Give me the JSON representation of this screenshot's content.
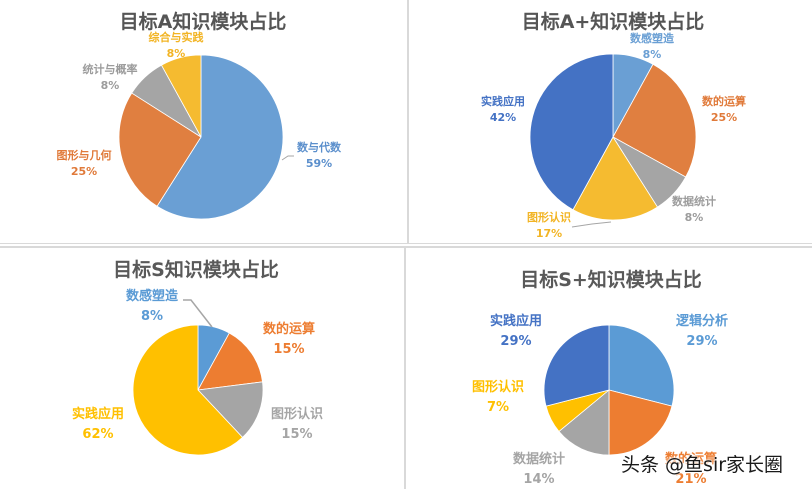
{
  "chart_data": [
    {
      "type": "pie",
      "title": "目标A知识模块占比",
      "categories": [
        "数与代数",
        "图形与几何",
        "统计与概率",
        "综合与实践"
      ],
      "values": [
        59,
        25,
        8,
        8
      ],
      "unit": "%",
      "colors": [
        "#6a9fd4",
        "#e07f40",
        "#a5a5a5",
        "#f5bb30"
      ],
      "label_colors": [
        "#5b8fcc",
        "#e07a3a",
        "#9c9c9c",
        "#f2b424"
      ],
      "legend": "none (data labels)"
    },
    {
      "type": "pie",
      "title": "目标A+知识模块占比",
      "categories": [
        "数感塑造",
        "数的运算",
        "数据统计",
        "图形认识",
        "实践应用"
      ],
      "values": [
        8,
        25,
        8,
        17,
        42
      ],
      "unit": "%",
      "colors": [
        "#6a9fd4",
        "#e07f40",
        "#a5a5a5",
        "#f5bb30",
        "#4472c4"
      ],
      "label_colors": [
        "#5b8fcc",
        "#e07a3a",
        "#9c9c9c",
        "#f2b424",
        "#4472c4"
      ],
      "legend": "none (data labels)"
    },
    {
      "type": "pie",
      "title": "目标S知识模块占比",
      "categories": [
        "数感塑造",
        "数的运算",
        "图形认识",
        "实践应用"
      ],
      "values": [
        8,
        15,
        15,
        62
      ],
      "unit": "%",
      "colors": [
        "#5b9bd5",
        "#ed7d31",
        "#a5a5a5",
        "#ffc000"
      ],
      "label_colors": [
        "#5b9bd5",
        "#ed7d31",
        "#a5a5a5",
        "#ffc000"
      ],
      "legend": "none (data labels)"
    },
    {
      "type": "pie",
      "title": "目标S+知识模块占比",
      "categories": [
        "逻辑分析",
        "数的运算",
        "数据统计",
        "图形认识",
        "实践应用"
      ],
      "values": [
        29,
        21,
        14,
        7,
        29
      ],
      "unit": "%",
      "colors": [
        "#5b9bd5",
        "#ed7d31",
        "#a5a5a5",
        "#ffc000",
        "#4472c4"
      ],
      "label_colors": [
        "#5b9bd5",
        "#ed7d31",
        "#a5a5a5",
        "#ffc000",
        "#4472c4"
      ],
      "legend": "none (data labels)"
    }
  ],
  "charts": [
    {
      "title": "目标A知识模块占比",
      "labels": [
        {
          "name": "数与代数",
          "pct": "59%"
        },
        {
          "name": "图形与几何",
          "pct": "25%"
        },
        {
          "name": "统计与概率",
          "pct": "8%"
        },
        {
          "name": "综合与实践",
          "pct": "8%"
        }
      ]
    },
    {
      "title": "目标A+知识模块占比",
      "labels": [
        {
          "name": "数感塑造",
          "pct": "8%"
        },
        {
          "name": "数的运算",
          "pct": "25%"
        },
        {
          "name": "数据统计",
          "pct": "8%"
        },
        {
          "name": "图形认识",
          "pct": "17%"
        },
        {
          "name": "实践应用",
          "pct": "42%"
        }
      ]
    },
    {
      "title": "目标S知识模块占比",
      "labels": [
        {
          "name": "数感塑造",
          "pct": "8%"
        },
        {
          "name": "数的运算",
          "pct": "15%"
        },
        {
          "name": "图形认识",
          "pct": "15%"
        },
        {
          "name": "实践应用",
          "pct": "62%"
        }
      ]
    },
    {
      "title": "目标S+知识模块占比",
      "labels": [
        {
          "name": "逻辑分析",
          "pct": "29%"
        },
        {
          "name": "数的运算",
          "pct": "21%"
        },
        {
          "name": "数据统计",
          "pct": "14%"
        },
        {
          "name": "图形认识",
          "pct": "7%"
        },
        {
          "name": "实践应用",
          "pct": "29%"
        }
      ]
    }
  ],
  "watermark": "头条 @鱼sir家长圈"
}
